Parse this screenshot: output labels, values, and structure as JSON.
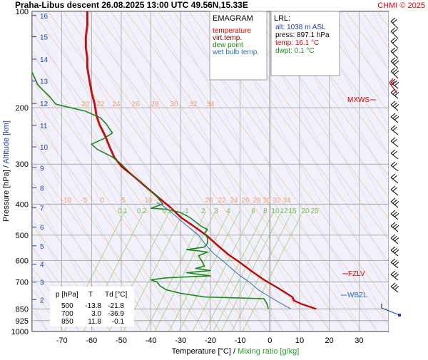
{
  "header": {
    "title": "Praha-Libus descent 26.08.2025 13:00 UTC 49.56N,15.33E",
    "credit": "CHMI © 2025"
  },
  "legend": {
    "title": "EMAGRAM",
    "items": [
      {
        "label": "temperature",
        "color": "#e00000"
      },
      {
        "label": "virt.temp.",
        "color": "#800000"
      },
      {
        "label": "dew point",
        "color": "#1a8a1a"
      },
      {
        "label": "wet bulb temp.",
        "color": "#3070c0"
      }
    ]
  },
  "lrl_box": {
    "title": "LRL:",
    "lines": [
      {
        "text": "alt: 1038 m ASL",
        "color": "#1f3fbf"
      },
      {
        "text": "press: 897.1 hPa",
        "color": "#000000"
      },
      {
        "text": "temp: 16.1 °C",
        "color": "#e00000"
      },
      {
        "text": "dwpt: 0.1 °C",
        "color": "#1a8a1a"
      }
    ]
  },
  "levels": [
    {
      "label": "MXWS",
      "color": "#e00000"
    },
    {
      "label": "FZLV",
      "color": "#e00000"
    },
    {
      "label": "WBZL",
      "color": "#3070c0"
    }
  ],
  "table": {
    "headers": [
      "p [hPa]",
      "T",
      "Td [°C]"
    ],
    "rows": [
      [
        "500",
        "-13.8",
        "-21.8"
      ],
      [
        "700",
        "3.0",
        "-36.9"
      ],
      [
        "850",
        "11.8",
        "-0.1"
      ]
    ]
  },
  "axes": {
    "ylabel_pressure": "Pressure [hPa]",
    "ylabel_sep": "/",
    "ylabel_altitude": "Altitude [km]",
    "xlabel_temp": "Temperature [°C]",
    "xlabel_sep": "/",
    "xlabel_mix": "Mixing ratio [g/kg]"
  },
  "chart_data": {
    "type": "line",
    "title": "Praha-Libus descent 26.08.2025 13:00 UTC 49.56N,15.33E",
    "xlabel": "Temperature [°C] / Mixing ratio [g/kg]",
    "ylabel": "Pressure [hPa] / Altitude [km]",
    "xlim": [
      -80,
      40
    ],
    "ylim": [
      1000,
      100
    ],
    "y_scale": "log",
    "x_ticks": [
      "-70",
      "-60",
      "-50",
      "-40",
      "-30",
      "-20",
      "-10",
      "0",
      "10",
      "20",
      "30"
    ],
    "pressure_ticks": [
      "100",
      "200",
      "300",
      "400",
      "500",
      "600",
      "700",
      "850",
      "925",
      "1000"
    ],
    "altitude_ticks_km": [
      "2",
      "3",
      "4",
      "5",
      "6",
      "7",
      "8",
      "9",
      "10",
      "11",
      "12",
      "13",
      "14",
      "15",
      "16"
    ],
    "dry_adiabat_labels_upper": [
      "20",
      "22",
      "24",
      "26",
      "28",
      "30",
      "32",
      "34"
    ],
    "dry_adiabat_labels_lower": [
      "-10",
      "-5",
      "0",
      "5",
      "10",
      "20",
      "22",
      "24",
      "26",
      "28",
      "30",
      "32",
      "34"
    ],
    "mixing_ratio_labels": [
      "0.1",
      "0.2",
      "0.5",
      "1",
      "2",
      "3",
      "4",
      "6",
      "8",
      "10",
      "12",
      "15",
      "20",
      "25"
    ],
    "grid": true,
    "series": [
      {
        "name": "temperature",
        "color": "#e00000",
        "points": [
          [
            15.5,
            850
          ],
          [
            10.5,
            820
          ],
          [
            8,
            800
          ],
          [
            7.5,
            780
          ],
          [
            2.5,
            730
          ],
          [
            -2,
            690
          ],
          [
            -6,
            650
          ],
          [
            -10,
            610
          ],
          [
            -14,
            575
          ],
          [
            -17.5,
            540
          ],
          [
            -21.5,
            500
          ],
          [
            -25.5,
            470
          ],
          [
            -30,
            440
          ],
          [
            -33.5,
            410
          ],
          [
            -37,
            385
          ],
          [
            -41.5,
            355
          ],
          [
            -45.5,
            330
          ],
          [
            -50,
            305
          ],
          [
            -52.5,
            285
          ],
          [
            -54,
            265
          ],
          [
            -55.5,
            245
          ],
          [
            -57.5,
            225
          ],
          [
            -58.5,
            210
          ],
          [
            -59,
            195
          ],
          [
            -60,
            180
          ],
          [
            -60.5,
            170
          ],
          [
            -61,
            160
          ],
          [
            -61.5,
            150
          ],
          [
            -61.5,
            140
          ],
          [
            -62,
            130
          ],
          [
            -62,
            120
          ],
          [
            -61.5,
            110
          ],
          [
            -61.5,
            105
          ],
          [
            -61.5,
            100
          ]
        ]
      },
      {
        "name": "dew point",
        "color": "#1a8a1a",
        "points": [
          [
            -0.5,
            850
          ],
          [
            -1,
            820
          ],
          [
            -2,
            790
          ],
          [
            -22,
            780
          ],
          [
            -30,
            760
          ],
          [
            -35,
            740
          ],
          [
            -37,
            720
          ],
          [
            -38,
            700
          ],
          [
            -40,
            690
          ],
          [
            -35,
            680
          ],
          [
            -20,
            670
          ],
          [
            -28,
            655
          ],
          [
            -20,
            645
          ],
          [
            -25,
            635
          ],
          [
            -22,
            625
          ],
          [
            -23,
            600
          ],
          [
            -24,
            580
          ],
          [
            -21,
            565
          ],
          [
            -24,
            560
          ],
          [
            -28,
            555
          ],
          [
            -22,
            545
          ],
          [
            -21,
            530
          ],
          [
            -21,
            510
          ],
          [
            -22,
            495
          ],
          [
            -21,
            480
          ],
          [
            -23,
            470
          ],
          [
            -25,
            455
          ],
          [
            -27,
            440
          ],
          [
            -30,
            425
          ],
          [
            -35,
            415
          ],
          [
            -40,
            412
          ],
          [
            -36,
            400
          ],
          [
            -38,
            380
          ],
          [
            -42,
            350
          ],
          [
            -47,
            320
          ],
          [
            -50,
            300
          ],
          [
            -53,
            285
          ],
          [
            -58,
            270
          ],
          [
            -60,
            260
          ],
          [
            -56,
            250
          ],
          [
            -53,
            240
          ],
          [
            -55,
            225
          ],
          [
            -57,
            215
          ],
          [
            -62,
            205
          ],
          [
            -72,
            195
          ],
          [
            -74,
            185
          ],
          [
            -78,
            170
          ],
          [
            -80,
            155
          ]
        ]
      },
      {
        "name": "wet bulb temp.",
        "color": "#3070c0",
        "points": [
          [
            7,
            850
          ],
          [
            4,
            820
          ],
          [
            1,
            790
          ],
          [
            -1,
            770
          ],
          [
            -4,
            740
          ],
          [
            -7,
            700
          ],
          [
            -10,
            670
          ],
          [
            -13,
            635
          ],
          [
            -16,
            600
          ],
          [
            -19,
            570
          ],
          [
            -22,
            530
          ],
          [
            -24,
            500
          ],
          [
            -27,
            475
          ],
          [
            -30,
            450
          ],
          [
            -33,
            425
          ],
          [
            -36,
            405
          ],
          [
            -38,
            395
          ]
        ]
      }
    ]
  }
}
